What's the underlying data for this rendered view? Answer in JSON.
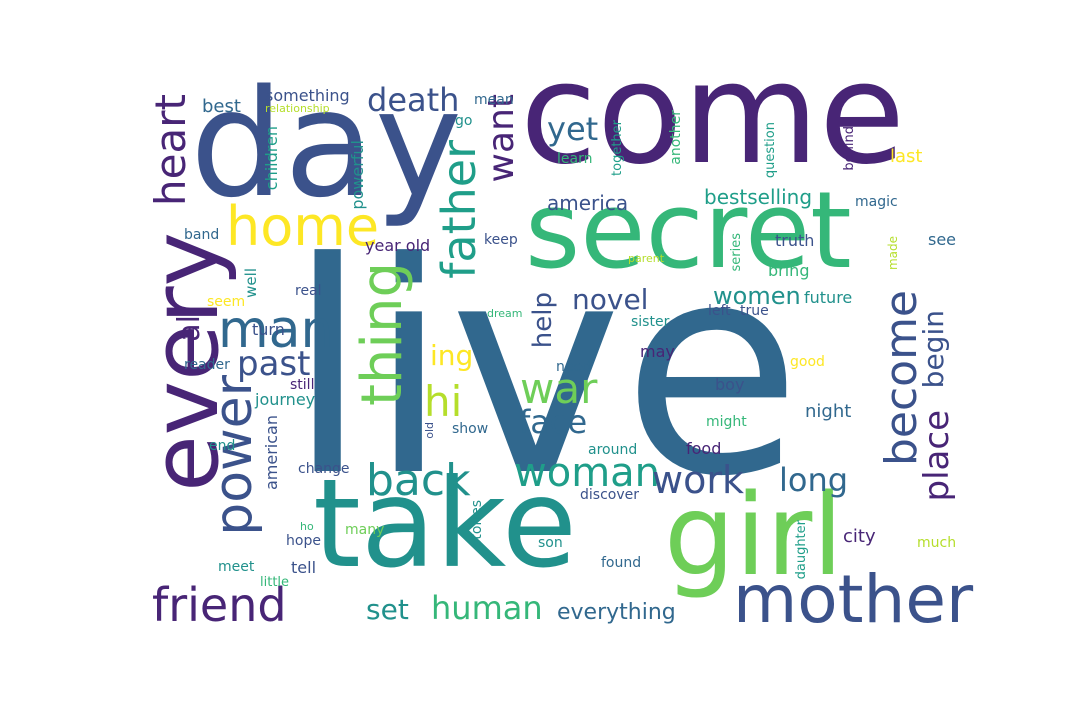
{
  "palette": {
    "dark_purple": "#482576",
    "blue": "#3b528b",
    "slate": "#31688e",
    "teal": "#21918c",
    "sea": "#1f9e89",
    "green": "#35b779",
    "light_green": "#6ece58",
    "lime": "#b5de2b",
    "yellow": "#fde725"
  },
  "words": [
    {
      "id": "live",
      "text": "live",
      "color": "slate"
    },
    {
      "id": "come",
      "text": "come",
      "color": "dark_purple"
    },
    {
      "id": "day",
      "text": "day",
      "color": "blue"
    },
    {
      "id": "secret",
      "text": "secret",
      "color": "green"
    },
    {
      "id": "take",
      "text": "take",
      "color": "teal"
    },
    {
      "id": "girl",
      "text": "girl",
      "color": "light_green"
    },
    {
      "id": "every",
      "text": "every",
      "color": "dark_purple"
    },
    {
      "id": "mother",
      "text": "mother",
      "color": "blue"
    },
    {
      "id": "friend",
      "text": "friend",
      "color": "dark_purple"
    },
    {
      "id": "home",
      "text": "home",
      "color": "yellow"
    },
    {
      "id": "man",
      "text": "man",
      "color": "slate"
    },
    {
      "id": "power",
      "text": "power",
      "color": "blue"
    },
    {
      "id": "thing",
      "text": "thing",
      "color": "light_green"
    },
    {
      "id": "father",
      "text": "father",
      "color": "sea"
    },
    {
      "id": "heart",
      "text": "heart",
      "color": "dark_purple"
    },
    {
      "id": "death",
      "text": "death",
      "color": "blue"
    },
    {
      "id": "want",
      "text": "want",
      "color": "dark_purple"
    },
    {
      "id": "yet",
      "text": "yet",
      "color": "slate"
    },
    {
      "id": "war",
      "text": "war",
      "color": "light_green"
    },
    {
      "id": "woman",
      "text": "woman",
      "color": "sea"
    },
    {
      "id": "work",
      "text": "work",
      "color": "blue"
    },
    {
      "id": "back",
      "text": "back",
      "color": "teal"
    },
    {
      "id": "become",
      "text": "become",
      "color": "blue"
    },
    {
      "id": "place",
      "text": "place",
      "color": "dark_purple"
    },
    {
      "id": "begin",
      "text": "begin",
      "color": "blue"
    },
    {
      "id": "past",
      "text": "past",
      "color": "blue"
    },
    {
      "id": "hi",
      "text": "hi",
      "color": "lime"
    },
    {
      "id": "face",
      "text": "face",
      "color": "slate"
    },
    {
      "id": "human",
      "text": "human",
      "color": "green"
    },
    {
      "id": "long",
      "text": "long",
      "color": "slate"
    },
    {
      "id": "novel",
      "text": "novel",
      "color": "blue"
    },
    {
      "id": "women",
      "text": "women",
      "color": "teal"
    },
    {
      "id": "ing",
      "text": "ing",
      "color": "yellow"
    },
    {
      "id": "help",
      "text": "help",
      "color": "blue"
    },
    {
      "id": "set",
      "text": "set",
      "color": "teal"
    },
    {
      "id": "everything",
      "text": "everything",
      "color": "slate"
    },
    {
      "id": "bestselling",
      "text": "bestselling",
      "color": "sea"
    },
    {
      "id": "america",
      "text": "america",
      "color": "blue"
    },
    {
      "id": "al",
      "text": "al",
      "color": "dark_purple"
    },
    {
      "id": "something",
      "text": "something",
      "color": "blue"
    },
    {
      "id": "best",
      "text": "best",
      "color": "slate"
    },
    {
      "id": "relationship",
      "text": "relationship",
      "color": "lime"
    },
    {
      "id": "mean",
      "text": "mean",
      "color": "slate"
    },
    {
      "id": "go",
      "text": "go",
      "color": "teal"
    },
    {
      "id": "children",
      "text": "children",
      "color": "sea"
    },
    {
      "id": "powerful",
      "text": "powerful",
      "color": "teal"
    },
    {
      "id": "band",
      "text": "band",
      "color": "slate"
    },
    {
      "id": "year-old",
      "text": "year old",
      "color": "dark_purple"
    },
    {
      "id": "keep",
      "text": "keep",
      "color": "blue"
    },
    {
      "id": "together",
      "text": "together",
      "color": "sea"
    },
    {
      "id": "learn",
      "text": "learn",
      "color": "green"
    },
    {
      "id": "another",
      "text": "another",
      "color": "green"
    },
    {
      "id": "question",
      "text": "question",
      "color": "sea"
    },
    {
      "id": "behind",
      "text": "behind",
      "color": "dark_purple"
    },
    {
      "id": "last",
      "text": "last",
      "color": "yellow"
    },
    {
      "id": "magic",
      "text": "magic",
      "color": "slate"
    },
    {
      "id": "truth",
      "text": "truth",
      "color": "blue"
    },
    {
      "id": "see",
      "text": "see",
      "color": "slate"
    },
    {
      "id": "series",
      "text": "series",
      "color": "green"
    },
    {
      "id": "bring",
      "text": "bring",
      "color": "green"
    },
    {
      "id": "made",
      "text": "made",
      "color": "lime"
    },
    {
      "id": "parent",
      "text": "parent",
      "color": "lime"
    },
    {
      "id": "well",
      "text": "well",
      "color": "teal"
    },
    {
      "id": "real",
      "text": "real",
      "color": "blue"
    },
    {
      "id": "seem",
      "text": "seem",
      "color": "yellow"
    },
    {
      "id": "turn",
      "text": "turn",
      "color": "blue"
    },
    {
      "id": "dream",
      "text": "dream",
      "color": "green"
    },
    {
      "id": "sister",
      "text": "sister",
      "color": "teal"
    },
    {
      "id": "left",
      "text": "left",
      "color": "blue"
    },
    {
      "id": "true",
      "text": "true",
      "color": "blue"
    },
    {
      "id": "future",
      "text": "future",
      "color": "teal"
    },
    {
      "id": "reader",
      "text": "reader",
      "color": "slate"
    },
    {
      "id": "still",
      "text": "still",
      "color": "dark_purple"
    },
    {
      "id": "journey",
      "text": "journey",
      "color": "teal"
    },
    {
      "id": "need",
      "text": "need",
      "color": "slate"
    },
    {
      "id": "may",
      "text": "may",
      "color": "dark_purple"
    },
    {
      "id": "good",
      "text": "good",
      "color": "yellow"
    },
    {
      "id": "boy",
      "text": "boy",
      "color": "blue"
    },
    {
      "id": "night",
      "text": "night",
      "color": "slate"
    },
    {
      "id": "might",
      "text": "might",
      "color": "green"
    },
    {
      "id": "end",
      "text": "end",
      "color": "teal"
    },
    {
      "id": "old",
      "text": "old",
      "color": "blue"
    },
    {
      "id": "show",
      "text": "show",
      "color": "slate"
    },
    {
      "id": "around",
      "text": "around",
      "color": "teal"
    },
    {
      "id": "food",
      "text": "food",
      "color": "dark_purple"
    },
    {
      "id": "american",
      "text": "american",
      "color": "blue"
    },
    {
      "id": "change",
      "text": "change",
      "color": "blue"
    },
    {
      "id": "discover",
      "text": "discover",
      "color": "blue"
    },
    {
      "id": "stories",
      "text": "stories",
      "color": "teal"
    },
    {
      "id": "ho",
      "text": "ho",
      "color": "green"
    },
    {
      "id": "hope",
      "text": "hope",
      "color": "blue"
    },
    {
      "id": "many",
      "text": "many",
      "color": "light_green"
    },
    {
      "id": "son",
      "text": "son",
      "color": "teal"
    },
    {
      "id": "found",
      "text": "found",
      "color": "slate"
    },
    {
      "id": "daughter",
      "text": "daughter",
      "color": "sea"
    },
    {
      "id": "city",
      "text": "city",
      "color": "dark_purple"
    },
    {
      "id": "much",
      "text": "much",
      "color": "lime"
    },
    {
      "id": "meet",
      "text": "meet",
      "color": "teal"
    },
    {
      "id": "tell",
      "text": "tell",
      "color": "blue"
    },
    {
      "id": "little",
      "text": "little",
      "color": "green"
    }
  ]
}
